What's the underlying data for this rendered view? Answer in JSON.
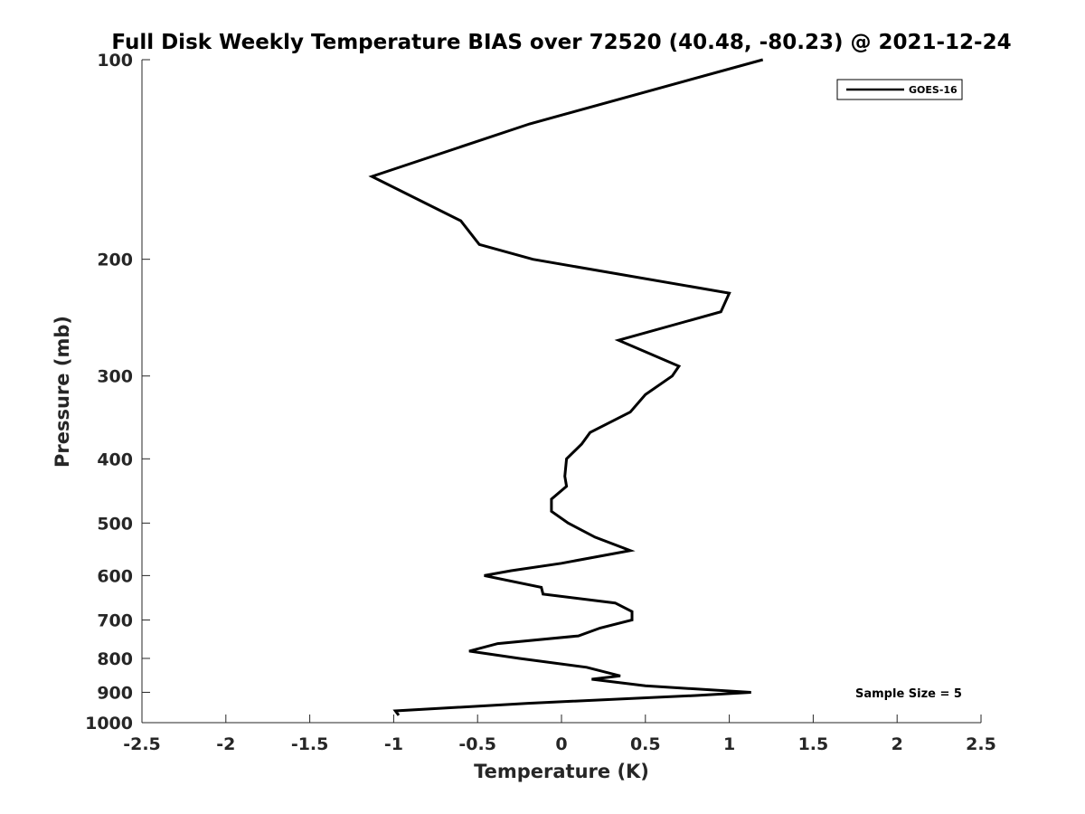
{
  "chart_data": {
    "type": "line",
    "title": "Full Disk Weekly Temperature BIAS over 72520 (40.48, -80.23) @ 2021-12-24",
    "xlabel": "Temperature (K)",
    "ylabel": "Pressure (mb)",
    "xlim": [
      -2.5,
      2.5
    ],
    "ylim": [
      100,
      1000
    ],
    "y_scale": "log",
    "y_reversed": true,
    "x_ticks": [
      "-2.5",
      "-2",
      "-1.5",
      "-1",
      "-0.5",
      "0",
      "0.5",
      "1",
      "1.5",
      "2",
      "2.5"
    ],
    "y_ticks": [
      "100",
      "200",
      "300",
      "400",
      "500",
      "600",
      "700",
      "800",
      "900",
      "1000"
    ],
    "legend": {
      "placement": "top-right"
    },
    "annotation": "Sample Size = 5",
    "grid": false,
    "series": [
      {
        "name": "GOES-16",
        "color": "#000000",
        "x": [
          1.2,
          -0.19,
          -1.13,
          -0.6,
          -0.49,
          -0.17,
          1.0,
          0.95,
          0.34,
          0.7,
          0.66,
          0.5,
          0.41,
          0.17,
          0.12,
          0.03,
          0.02,
          0.03,
          -0.06,
          -0.06,
          0.04,
          0.2,
          0.41,
          0.0,
          -0.3,
          -0.46,
          -0.12,
          -0.11,
          0.32,
          0.42,
          0.42,
          0.23,
          0.1,
          -0.38,
          -0.55,
          -0.25,
          0.15,
          0.35,
          0.18,
          0.5,
          1.13,
          0.8,
          -0.2,
          -0.99,
          -0.97
        ],
        "y": [
          100,
          125,
          150,
          175,
          190,
          200,
          225,
          240,
          265,
          290,
          300,
          320,
          340,
          365,
          380,
          400,
          425,
          440,
          460,
          480,
          500,
          525,
          550,
          575,
          590,
          600,
          625,
          640,
          660,
          680,
          700,
          720,
          740,
          760,
          780,
          800,
          825,
          850,
          860,
          880,
          900,
          910,
          935,
          960,
          975
        ]
      }
    ]
  }
}
